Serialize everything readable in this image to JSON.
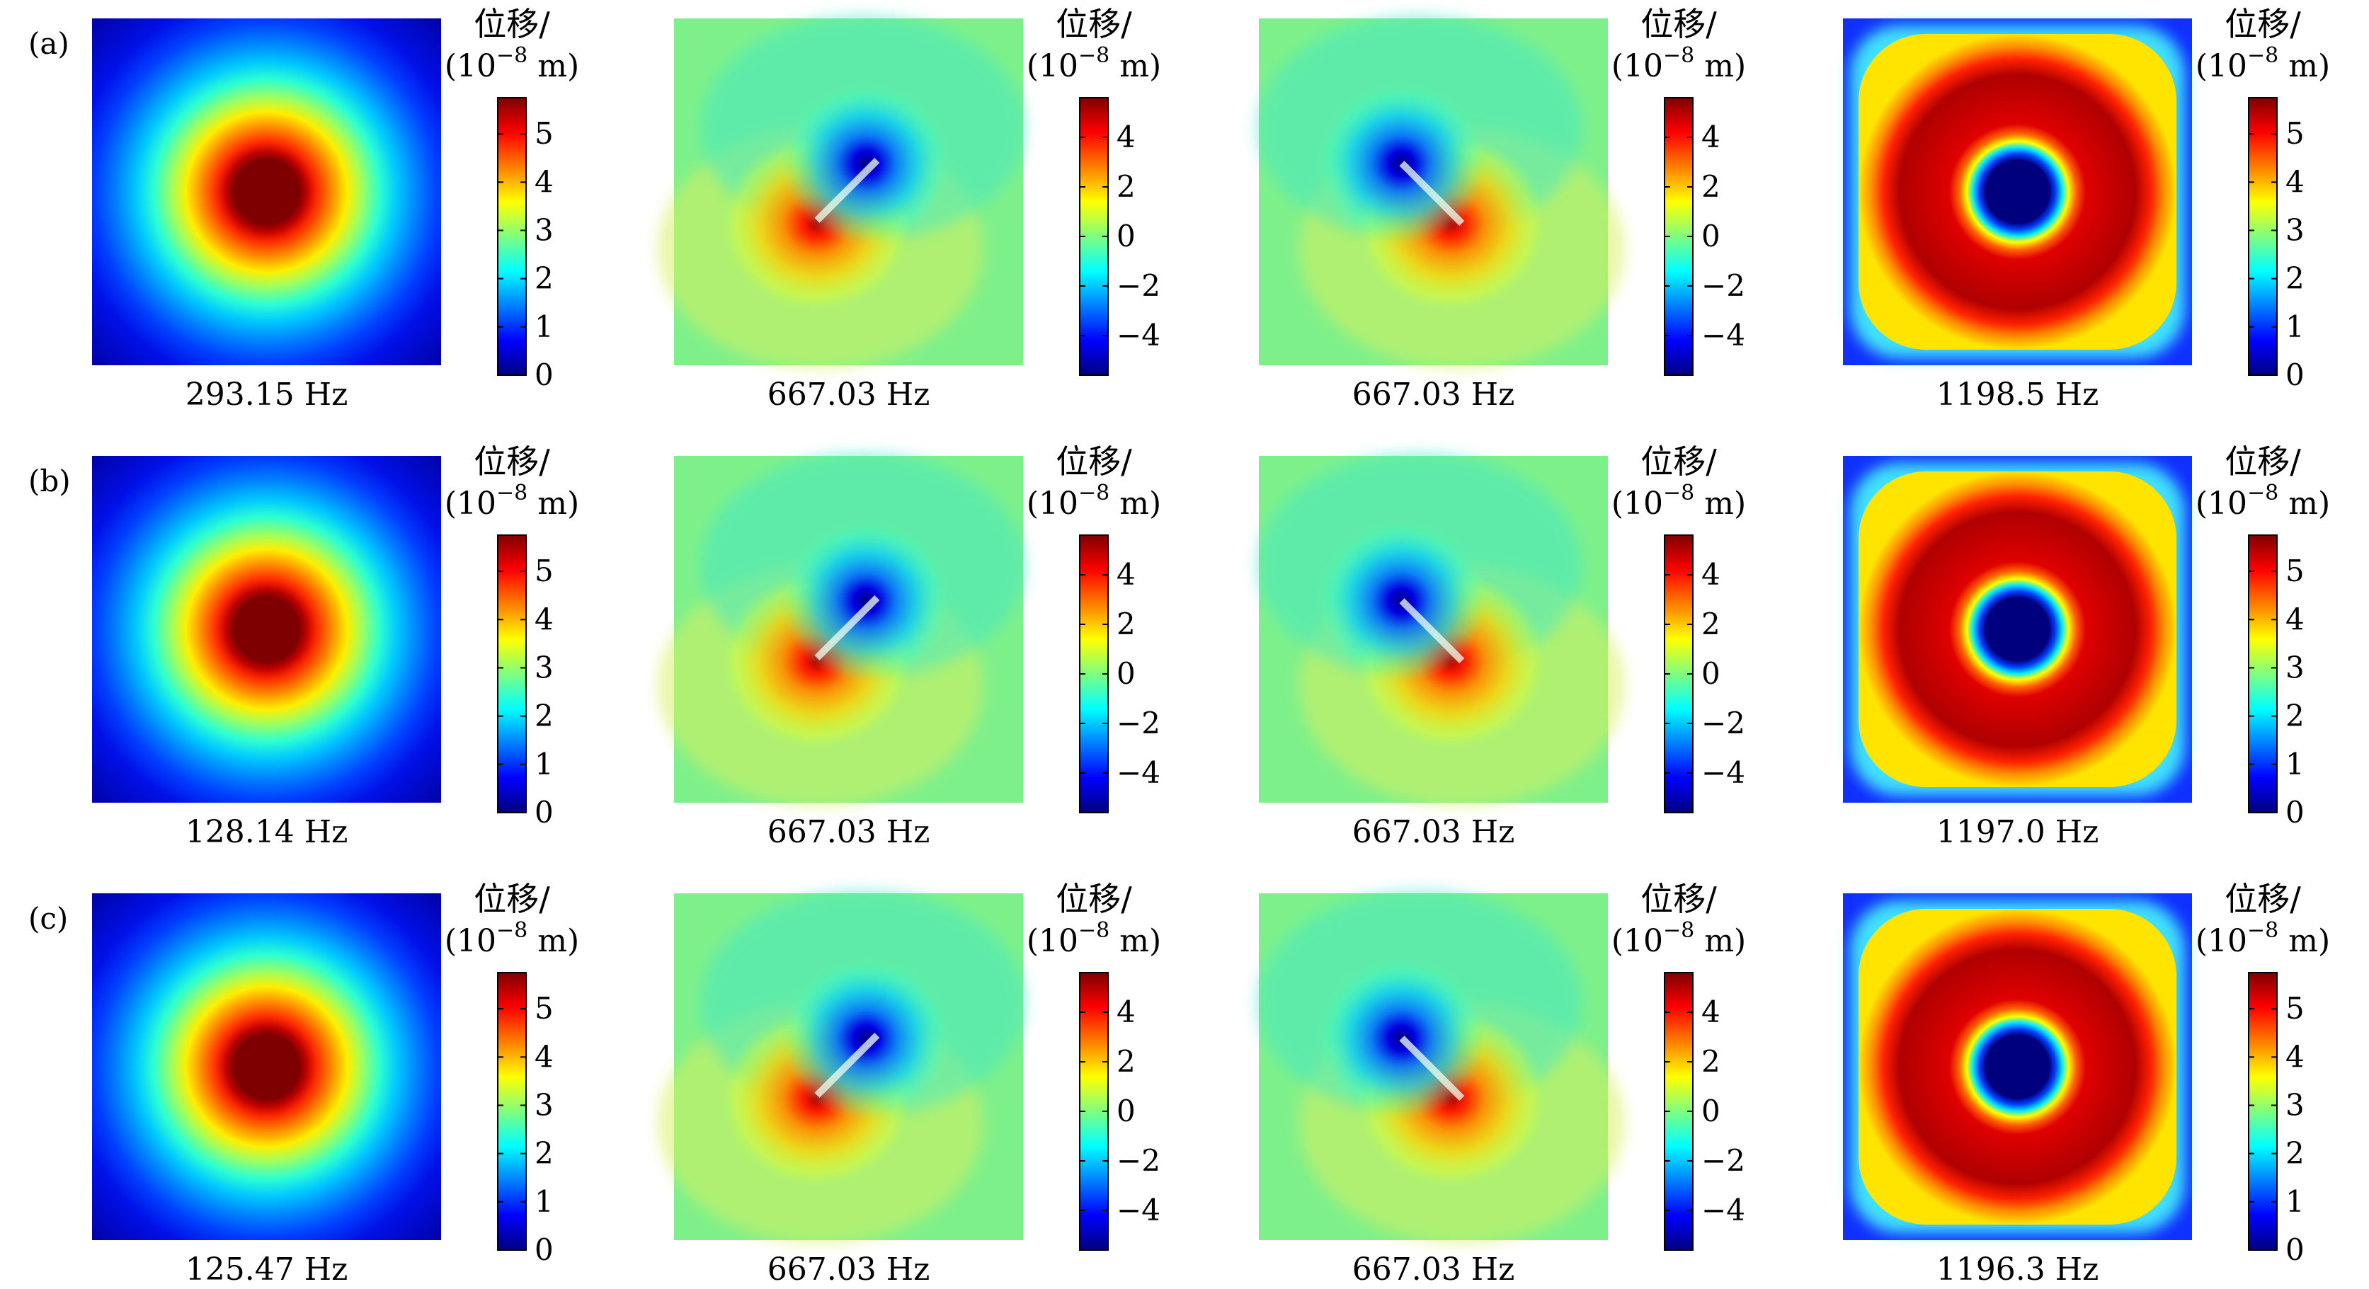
{
  "figure": {
    "panels_per_row": 4,
    "colorbar_title": "位移/",
    "colorbar_unit_open": "(10",
    "colorbar_unit_exp": "−8",
    "colorbar_unit_close": " m)",
    "mode_shapes": [
      "breathing",
      "dipole-left-high",
      "dipole-right-high",
      "ring-edge"
    ],
    "colormap": [
      "#00007f",
      "#0000ff",
      "#007fff",
      "#00ffff",
      "#7fff7f",
      "#ffff00",
      "#ff7f00",
      "#ff0000",
      "#7f0000"
    ]
  },
  "rows": [
    {
      "label": "(a)",
      "panels": [
        {
          "frequency": "293.15 Hz",
          "ticks": [
            "0",
            "1",
            "2",
            "3",
            "4",
            "5"
          ]
        },
        {
          "frequency": "667.03 Hz",
          "ticks": [
            "−4",
            "−2",
            "0",
            "2",
            "4"
          ]
        },
        {
          "frequency": "667.03 Hz",
          "ticks": [
            "−4",
            "−2",
            "0",
            "2",
            "4"
          ]
        },
        {
          "frequency": "1198.5 Hz",
          "ticks": [
            "0",
            "1",
            "2",
            "3",
            "4",
            "5"
          ]
        }
      ]
    },
    {
      "label": "(b)",
      "panels": [
        {
          "frequency": "128.14 Hz",
          "ticks": [
            "0",
            "1",
            "2",
            "3",
            "4",
            "5"
          ]
        },
        {
          "frequency": "667.03 Hz",
          "ticks": [
            "−4",
            "−2",
            "0",
            "2",
            "4"
          ]
        },
        {
          "frequency": "667.03 Hz",
          "ticks": [
            "−4",
            "−2",
            "0",
            "2",
            "4"
          ]
        },
        {
          "frequency": "1197.0 Hz",
          "ticks": [
            "0",
            "1",
            "2",
            "3",
            "4",
            "5"
          ]
        }
      ]
    },
    {
      "label": "(c)",
      "panels": [
        {
          "frequency": "125.47 Hz",
          "ticks": [
            "0",
            "1",
            "2",
            "3",
            "4",
            "5"
          ]
        },
        {
          "frequency": "667.03 Hz",
          "ticks": [
            "−4",
            "−2",
            "0",
            "2",
            "4"
          ]
        },
        {
          "frequency": "667.03 Hz",
          "ticks": [
            "−4",
            "−2",
            "0",
            "2",
            "4"
          ]
        },
        {
          "frequency": "1196.3 Hz",
          "ticks": [
            "0",
            "1",
            "2",
            "3",
            "4",
            "5"
          ]
        }
      ]
    }
  ]
}
